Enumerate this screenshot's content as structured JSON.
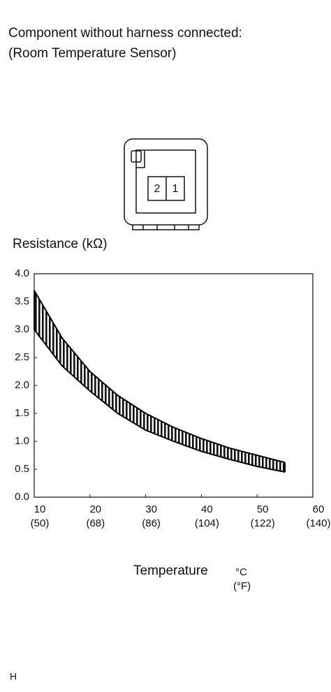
{
  "header": {
    "line1": "Component without harness connected:",
    "line2": "(Room Temperature Sensor)"
  },
  "connector": {
    "pins": [
      "2",
      "1"
    ]
  },
  "footer": "H",
  "chart_data": {
    "type": "band",
    "y_label": "Resistance (kΩ)",
    "x_label": "Temperature",
    "x_unit": "°C",
    "x_unit2": "(°F)",
    "x": [
      10,
      15,
      20,
      25,
      30,
      35,
      40,
      45,
      50,
      55
    ],
    "series": [
      {
        "color": "#000000",
        "values": [
          3.7,
          2.85,
          2.25,
          1.82,
          1.5,
          1.25,
          1.05,
          0.88,
          0.75,
          0.62
        ]
      },
      {
        "color": "#000000",
        "values": [
          3.0,
          2.35,
          1.9,
          1.5,
          1.2,
          1.0,
          0.82,
          0.68,
          0.55,
          0.45
        ]
      }
    ],
    "xlim": [
      10,
      60
    ],
    "xticks": [
      10,
      20,
      30,
      40,
      50,
      60
    ],
    "xtick_labels2": [
      "(50)",
      "(68)",
      "(86)",
      "(104)",
      "(122)",
      "(140)"
    ],
    "ylim": [
      0,
      4
    ],
    "yticks": [
      {
        "value": 0,
        "label": "0.0"
      },
      0.5,
      {
        "value": 1,
        "label": "1.0"
      },
      1.5,
      {
        "value": 2,
        "label": "2.0"
      },
      2.5,
      {
        "value": 3,
        "label": "3.0"
      },
      3.5,
      {
        "value": 4,
        "label": "4.0"
      }
    ]
  }
}
